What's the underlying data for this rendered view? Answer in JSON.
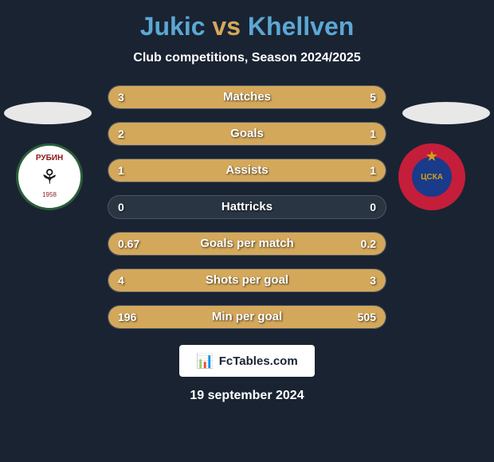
{
  "title": {
    "player1": "Jukic",
    "vs": "vs",
    "player2": "Khellven"
  },
  "subtitle": "Club competitions, Season 2024/2025",
  "colors": {
    "background": "#1a2332",
    "bar_fill": "#d4a85b",
    "bar_bg": "#2a3544",
    "title_player": "#5ba8d4",
    "title_vs": "#d4a85b",
    "text": "#ffffff"
  },
  "badges": {
    "left": {
      "name": "РУБИН",
      "year": "1958",
      "bg_color": "#ffffff",
      "border_color": "#2a5f3a",
      "text_color": "#8b1a1a"
    },
    "right": {
      "name": "ЦСКА",
      "bg_color": "#c41e3a",
      "inner_color": "#1a3a8a",
      "text_color": "#d4a017"
    }
  },
  "stats": [
    {
      "label": "Matches",
      "left_value": "3",
      "right_value": "5",
      "left_pct": 37.5,
      "right_pct": 62.5
    },
    {
      "label": "Goals",
      "left_value": "2",
      "right_value": "1",
      "left_pct": 66.7,
      "right_pct": 33.3
    },
    {
      "label": "Assists",
      "left_value": "1",
      "right_value": "1",
      "left_pct": 50,
      "right_pct": 50
    },
    {
      "label": "Hattricks",
      "left_value": "0",
      "right_value": "0",
      "left_pct": 0,
      "right_pct": 0
    },
    {
      "label": "Goals per match",
      "left_value": "0.67",
      "right_value": "0.2",
      "left_pct": 77,
      "right_pct": 23
    },
    {
      "label": "Shots per goal",
      "left_value": "4",
      "right_value": "3",
      "left_pct": 57,
      "right_pct": 43
    },
    {
      "label": "Min per goal",
      "left_value": "196",
      "right_value": "505",
      "left_pct": 28,
      "right_pct": 72
    }
  ],
  "footer": {
    "logo_text": "FcTables.com",
    "date": "19 september 2024"
  }
}
